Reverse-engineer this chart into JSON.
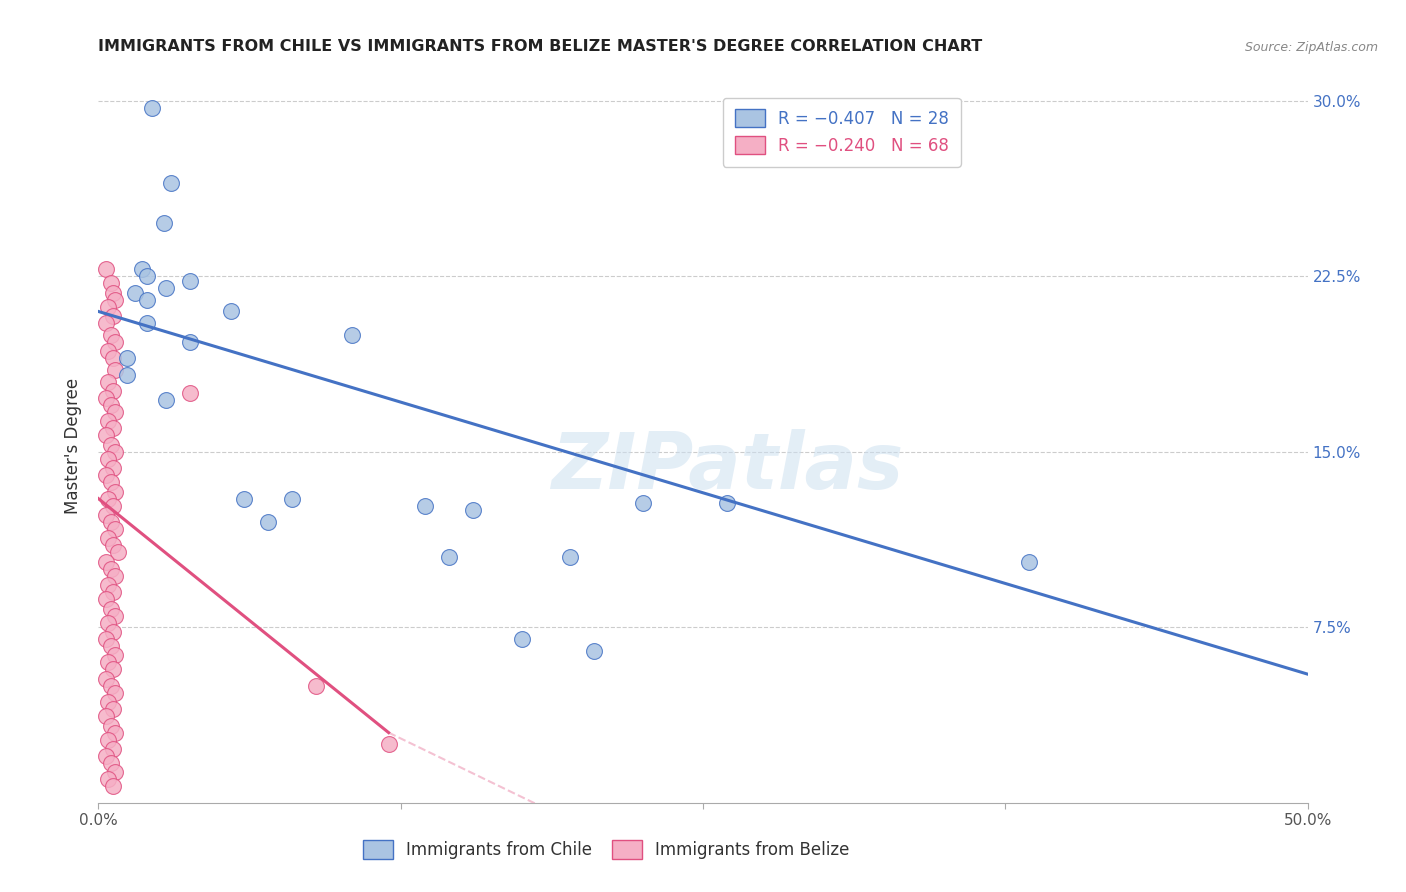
{
  "title": "IMMIGRANTS FROM CHILE VS IMMIGRANTS FROM BELIZE MASTER'S DEGREE CORRELATION CHART",
  "source": "Source: ZipAtlas.com",
  "ylabel": "Master's Degree",
  "xlim": [
    0,
    0.5
  ],
  "ylim": [
    0,
    0.3
  ],
  "xtick_labels": [
    "0.0%",
    "",
    "",
    "",
    "50.0%"
  ],
  "xtick_vals": [
    0.0,
    0.125,
    0.25,
    0.375,
    0.5
  ],
  "ytick_vals": [
    0.075,
    0.15,
    0.225,
    0.3
  ],
  "ytick_right_labels": [
    "7.5%",
    "15.0%",
    "22.5%",
    "30.0%"
  ],
  "chile_color": "#aac4e2",
  "belize_color": "#f5afc5",
  "chile_line_color": "#4472c4",
  "belize_line_color": "#e05080",
  "chile_scatter": [
    [
      0.022,
      0.297
    ],
    [
      0.03,
      0.265
    ],
    [
      0.027,
      0.248
    ],
    [
      0.018,
      0.228
    ],
    [
      0.02,
      0.225
    ],
    [
      0.038,
      0.223
    ],
    [
      0.028,
      0.22
    ],
    [
      0.015,
      0.218
    ],
    [
      0.02,
      0.215
    ],
    [
      0.055,
      0.21
    ],
    [
      0.02,
      0.205
    ],
    [
      0.105,
      0.2
    ],
    [
      0.038,
      0.197
    ],
    [
      0.012,
      0.19
    ],
    [
      0.012,
      0.183
    ],
    [
      0.028,
      0.172
    ],
    [
      0.06,
      0.13
    ],
    [
      0.08,
      0.13
    ],
    [
      0.07,
      0.12
    ],
    [
      0.135,
      0.127
    ],
    [
      0.155,
      0.125
    ],
    [
      0.145,
      0.105
    ],
    [
      0.225,
      0.128
    ],
    [
      0.195,
      0.105
    ],
    [
      0.26,
      0.128
    ],
    [
      0.175,
      0.07
    ],
    [
      0.205,
      0.065
    ],
    [
      0.385,
      0.103
    ]
  ],
  "belize_scatter": [
    [
      0.003,
      0.228
    ],
    [
      0.005,
      0.222
    ],
    [
      0.006,
      0.218
    ],
    [
      0.007,
      0.215
    ],
    [
      0.004,
      0.212
    ],
    [
      0.006,
      0.208
    ],
    [
      0.003,
      0.205
    ],
    [
      0.005,
      0.2
    ],
    [
      0.007,
      0.197
    ],
    [
      0.004,
      0.193
    ],
    [
      0.006,
      0.19
    ],
    [
      0.007,
      0.185
    ],
    [
      0.004,
      0.18
    ],
    [
      0.006,
      0.176
    ],
    [
      0.003,
      0.173
    ],
    [
      0.005,
      0.17
    ],
    [
      0.007,
      0.167
    ],
    [
      0.004,
      0.163
    ],
    [
      0.006,
      0.16
    ],
    [
      0.003,
      0.157
    ],
    [
      0.005,
      0.153
    ],
    [
      0.007,
      0.15
    ],
    [
      0.004,
      0.147
    ],
    [
      0.006,
      0.143
    ],
    [
      0.003,
      0.14
    ],
    [
      0.005,
      0.137
    ],
    [
      0.007,
      0.133
    ],
    [
      0.004,
      0.13
    ],
    [
      0.006,
      0.127
    ],
    [
      0.003,
      0.123
    ],
    [
      0.005,
      0.12
    ],
    [
      0.007,
      0.117
    ],
    [
      0.004,
      0.113
    ],
    [
      0.006,
      0.11
    ],
    [
      0.008,
      0.107
    ],
    [
      0.003,
      0.103
    ],
    [
      0.005,
      0.1
    ],
    [
      0.007,
      0.097
    ],
    [
      0.004,
      0.093
    ],
    [
      0.006,
      0.09
    ],
    [
      0.003,
      0.087
    ],
    [
      0.005,
      0.083
    ],
    [
      0.007,
      0.08
    ],
    [
      0.004,
      0.077
    ],
    [
      0.006,
      0.073
    ],
    [
      0.003,
      0.07
    ],
    [
      0.005,
      0.067
    ],
    [
      0.007,
      0.063
    ],
    [
      0.004,
      0.06
    ],
    [
      0.006,
      0.057
    ],
    [
      0.003,
      0.053
    ],
    [
      0.005,
      0.05
    ],
    [
      0.007,
      0.047
    ],
    [
      0.004,
      0.043
    ],
    [
      0.006,
      0.04
    ],
    [
      0.003,
      0.037
    ],
    [
      0.005,
      0.033
    ],
    [
      0.007,
      0.03
    ],
    [
      0.004,
      0.027
    ],
    [
      0.006,
      0.023
    ],
    [
      0.003,
      0.02
    ],
    [
      0.005,
      0.017
    ],
    [
      0.007,
      0.013
    ],
    [
      0.004,
      0.01
    ],
    [
      0.006,
      0.007
    ],
    [
      0.038,
      0.175
    ],
    [
      0.09,
      0.05
    ],
    [
      0.12,
      0.025
    ]
  ],
  "chile_R": -0.407,
  "chile_N": 28,
  "belize_R": -0.24,
  "belize_N": 68
}
